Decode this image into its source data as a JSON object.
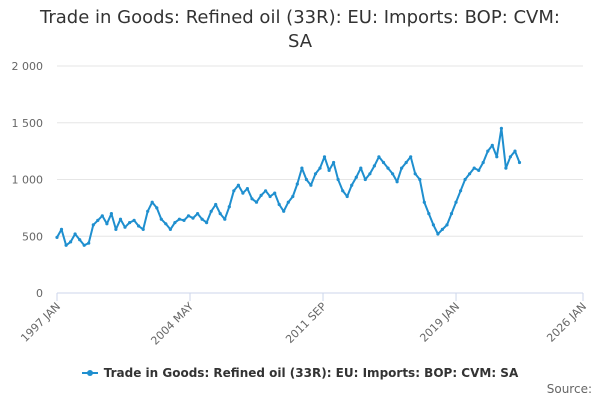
{
  "title_line1": "Trade in Goods: Refined oil (33R): EU: Imports: BOP: CVM:",
  "title_line2": "SA",
  "source_label": "Source:",
  "colors": {
    "series": "#1f8fcf",
    "grid": "#e6e6e6",
    "axis": "#ccd6eb"
  },
  "chart_data": {
    "type": "line",
    "title": "Trade in Goods: Refined oil (33R): EU: Imports: BOP: CVM: SA",
    "xlabel": "",
    "ylabel": "",
    "x_ticks": [
      "1997 JAN",
      "2004 MAY",
      "2011 SEP",
      "2019 JAN",
      "2026 JAN"
    ],
    "y_ticks": [
      "0",
      "500",
      "1 000",
      "1 500",
      "2 000"
    ],
    "ylim": [
      0,
      2000
    ],
    "xlim": [
      "1997-01",
      "2026-01"
    ],
    "grid": true,
    "legend_position": "bottom",
    "series": [
      {
        "name": "Trade in Goods: Refined oil (33R): EU: Imports: BOP: CVM: SA",
        "start": "1997-01",
        "frequency": "quarterly",
        "values": [
          490,
          560,
          420,
          450,
          520,
          470,
          420,
          440,
          600,
          640,
          680,
          610,
          700,
          560,
          650,
          580,
          620,
          640,
          590,
          560,
          720,
          800,
          750,
          650,
          610,
          560,
          620,
          650,
          640,
          680,
          660,
          700,
          650,
          620,
          720,
          780,
          700,
          650,
          760,
          900,
          950,
          880,
          920,
          830,
          800,
          860,
          900,
          850,
          880,
          780,
          720,
          800,
          850,
          960,
          1100,
          1000,
          950,
          1050,
          1100,
          1200,
          1080,
          1150,
          1000,
          900,
          850,
          950,
          1020,
          1100,
          1000,
          1050,
          1120,
          1200,
          1150,
          1100,
          1050,
          980,
          1100,
          1150,
          1200,
          1050,
          1000,
          800,
          700,
          600,
          520,
          560,
          600,
          700,
          800,
          900,
          1000,
          1050,
          1100,
          1080,
          1150,
          1250,
          1300,
          1200,
          1450,
          1100,
          1200,
          1250,
          1150
        ]
      }
    ]
  }
}
